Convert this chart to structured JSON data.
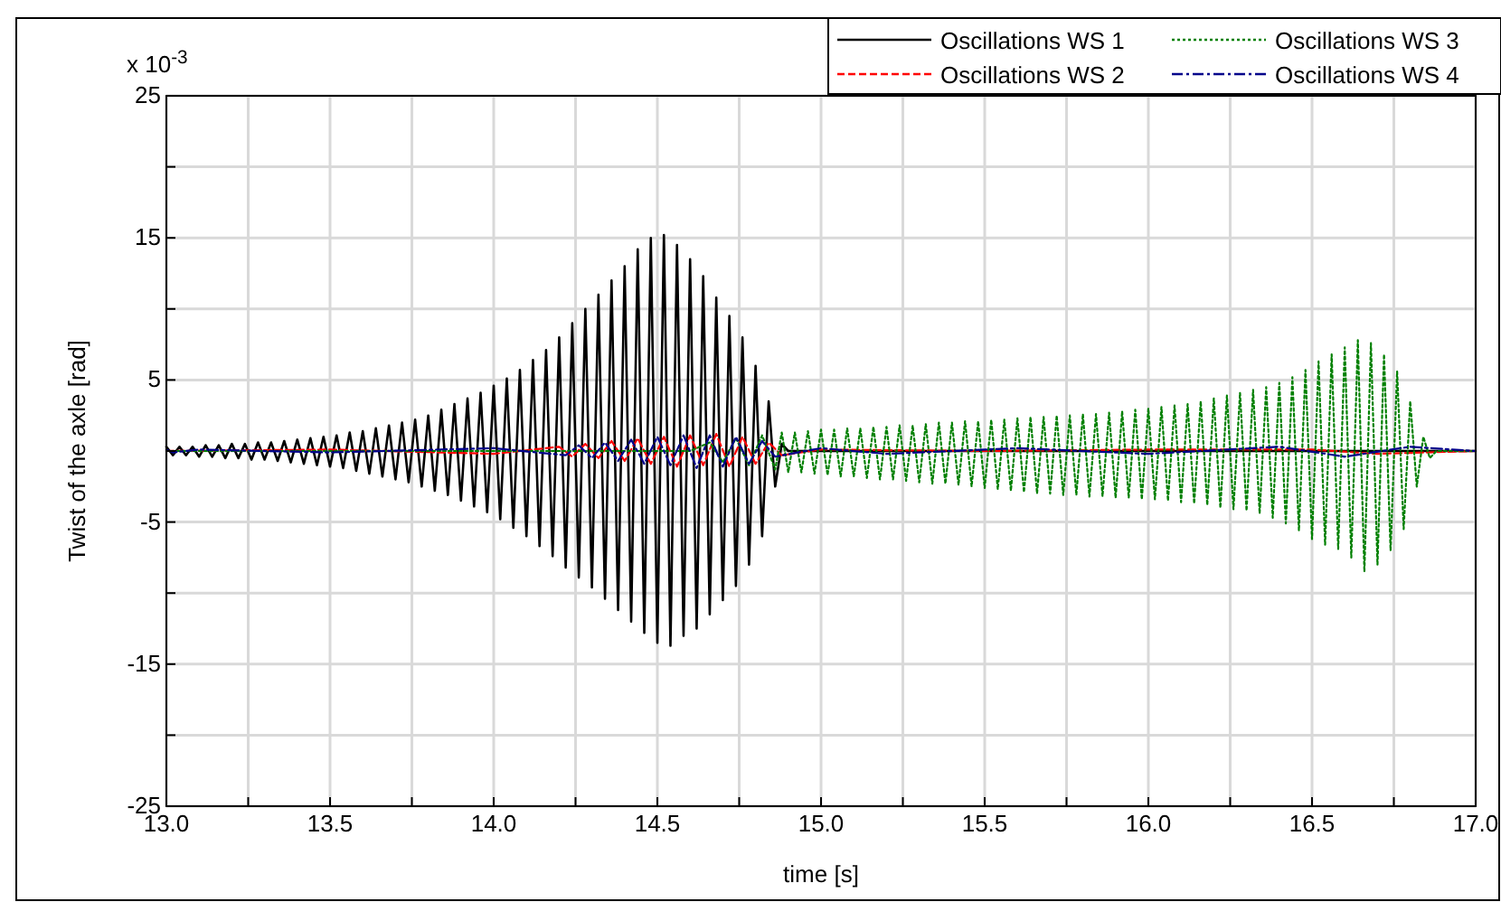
{
  "chart_data": {
    "type": "line",
    "xlabel": "time [s]",
    "ylabel": "Twist of the axle [rad]",
    "annotations": [
      "x 10$^{-3}$"
    ],
    "xlim": [
      13,
      17
    ],
    "ylim": [
      -25,
      25
    ],
    "xticks": [
      {
        "value": 13,
        "label": "13.0"
      },
      {
        "value": 13.25,
        "label": null
      },
      {
        "value": 13.5,
        "label": "13.5"
      },
      {
        "value": 13.75,
        "label": null
      },
      {
        "value": 14,
        "label": "14.0"
      },
      {
        "value": 14.25,
        "label": null
      },
      {
        "value": 14.5,
        "label": "14.5"
      },
      {
        "value": 14.75,
        "label": null
      },
      {
        "value": 15,
        "label": "15.0"
      },
      {
        "value": 15.25,
        "label": null
      },
      {
        "value": 15.5,
        "label": "15.5"
      },
      {
        "value": 15.75,
        "label": null
      },
      {
        "value": 16,
        "label": "16.0"
      },
      {
        "value": 16.25,
        "label": null
      },
      {
        "value": 16.5,
        "label": "16.5"
      },
      {
        "value": 16.75,
        "label": null
      },
      {
        "value": 17,
        "label": "17.0"
      }
    ],
    "yticks": [
      -25,
      {
        "value": -20,
        "label": null
      },
      -15,
      {
        "value": -10,
        "label": null
      },
      -5,
      {
        "value": 0,
        "label": null
      },
      5,
      {
        "value": 10,
        "label": null
      },
      15,
      {
        "value": 20,
        "label": null
      },
      25
    ],
    "grid": true,
    "legend": "top right",
    "series": [
      {
        "name": "Oscillations WS 1",
        "color": "#000000",
        "line_style": "solid",
        "x": [
          13.0,
          13.02,
          13.04,
          13.06,
          13.08,
          13.1,
          13.12,
          13.14,
          13.16,
          13.18,
          13.2,
          13.22,
          13.24,
          13.26,
          13.28,
          13.3,
          13.32,
          13.34,
          13.36,
          13.38,
          13.4,
          13.42,
          13.44,
          13.46,
          13.48,
          13.5,
          13.52,
          13.54,
          13.56,
          13.58,
          13.6,
          13.62,
          13.64,
          13.66,
          13.68,
          13.7,
          13.72,
          13.74,
          13.76,
          13.78,
          13.8,
          13.82,
          13.84,
          13.86,
          13.88,
          13.9,
          13.92,
          13.94,
          13.96,
          13.98,
          14.0,
          14.02,
          14.04,
          14.06,
          14.08,
          14.1,
          14.12,
          14.14,
          14.16,
          14.18,
          14.2,
          14.22,
          14.24,
          14.26,
          14.28,
          14.3,
          14.32,
          14.34,
          14.36,
          14.38,
          14.4,
          14.42,
          14.44,
          14.46,
          14.48,
          14.5,
          14.52,
          14.54,
          14.56,
          14.58,
          14.6,
          14.62,
          14.64,
          14.66,
          14.68,
          14.7,
          14.72,
          14.74,
          14.76,
          14.78,
          14.8,
          14.82,
          14.84,
          14.86,
          14.88,
          14.9,
          15.5,
          16.0,
          16.5,
          17.0
        ],
        "values": [
          0.3,
          -0.3,
          0.3,
          -0.3,
          0.3,
          -0.4,
          0.4,
          -0.4,
          0.4,
          -0.5,
          0.5,
          -0.5,
          0.5,
          -0.6,
          0.6,
          -0.6,
          0.6,
          -0.7,
          0.7,
          -0.8,
          0.8,
          -0.9,
          0.9,
          -1.0,
          1.0,
          -1.1,
          1.1,
          -1.2,
          1.3,
          -1.4,
          1.4,
          -1.6,
          1.6,
          -1.8,
          1.8,
          -2.0,
          2.0,
          -2.2,
          2.2,
          -2.5,
          2.5,
          -2.8,
          2.9,
          -3.1,
          3.3,
          -3.5,
          3.7,
          -3.9,
          4.1,
          -4.3,
          4.6,
          -4.8,
          5.1,
          -5.4,
          5.7,
          -6.0,
          6.4,
          -6.7,
          7.1,
          -7.4,
          8.0,
          -8.2,
          9.0,
          -8.9,
          10.0,
          -9.6,
          11.0,
          -10.4,
          12.0,
          -11.2,
          13.0,
          -12.0,
          14.2,
          -12.8,
          15.0,
          -13.5,
          15.2,
          -13.7,
          14.5,
          -13.0,
          13.5,
          -12.5,
          12.3,
          -11.5,
          10.8,
          -10.5,
          9.5,
          -9.5,
          8.0,
          -8.0,
          6.0,
          -6.0,
          3.5,
          -2.5,
          0.5,
          0,
          0,
          0,
          0,
          0
        ]
      },
      {
        "name": "Oscillations WS 2",
        "color": "#ff0000",
        "line_style": "dashed",
        "x": [
          13.0,
          13.5,
          14.0,
          14.2,
          14.24,
          14.28,
          14.32,
          14.36,
          14.4,
          14.44,
          14.48,
          14.52,
          14.56,
          14.6,
          14.64,
          14.68,
          14.72,
          14.76,
          14.8,
          14.84,
          14.88,
          15.0,
          15.5,
          16.0,
          16.5,
          16.7,
          17.0
        ],
        "values": [
          0,
          0.1,
          -0.2,
          0.3,
          -0.4,
          0.5,
          -0.5,
          0.7,
          -0.7,
          0.9,
          -0.9,
          1.0,
          -1.1,
          1.1,
          -1.0,
          1.2,
          -1.1,
          1.0,
          -0.9,
          0.6,
          -0.3,
          0.1,
          0,
          0.1,
          0.1,
          -0.2,
          0
        ]
      },
      {
        "name": "Oscillations WS 3",
        "color": "#008000",
        "line_style": "dotted",
        "x": [
          13.0,
          14.6,
          14.66,
          14.7,
          14.74,
          14.78,
          14.82,
          14.86,
          14.88,
          14.9,
          14.92,
          14.94,
          14.96,
          14.98,
          15.0,
          15.02,
          15.04,
          15.06,
          15.08,
          15.1,
          15.12,
          15.14,
          15.16,
          15.18,
          15.2,
          15.22,
          15.24,
          15.26,
          15.28,
          15.3,
          15.32,
          15.34,
          15.36,
          15.38,
          15.4,
          15.42,
          15.44,
          15.46,
          15.48,
          15.5,
          15.52,
          15.54,
          15.56,
          15.58,
          15.6,
          15.62,
          15.64,
          15.66,
          15.68,
          15.7,
          15.72,
          15.74,
          15.76,
          15.78,
          15.8,
          15.82,
          15.84,
          15.86,
          15.88,
          15.9,
          15.92,
          15.94,
          15.96,
          15.98,
          16.0,
          16.02,
          16.04,
          16.06,
          16.08,
          16.1,
          16.12,
          16.14,
          16.16,
          16.18,
          16.2,
          16.22,
          16.24,
          16.26,
          16.28,
          16.3,
          16.32,
          16.34,
          16.36,
          16.38,
          16.4,
          16.42,
          16.44,
          16.46,
          16.48,
          16.5,
          16.52,
          16.54,
          16.56,
          16.58,
          16.6,
          16.62,
          16.64,
          16.66,
          16.68,
          16.7,
          16.72,
          16.74,
          16.76,
          16.78,
          16.8,
          16.82,
          16.84,
          16.86,
          16.88,
          17.0
        ],
        "values": [
          0,
          0,
          0.6,
          -0.8,
          0.9,
          -1.0,
          1.1,
          -1.3,
          1.3,
          -1.5,
          1.3,
          -1.5,
          1.4,
          -1.6,
          1.5,
          -1.7,
          1.5,
          -1.8,
          1.6,
          -1.8,
          1.6,
          -1.9,
          1.7,
          -2.0,
          1.7,
          -2.0,
          1.8,
          -2.1,
          1.8,
          -2.2,
          1.9,
          -2.3,
          2.0,
          -2.3,
          2.0,
          -2.4,
          2.1,
          -2.5,
          2.1,
          -2.6,
          2.2,
          -2.7,
          2.2,
          -2.8,
          2.3,
          -2.9,
          2.4,
          -3.0,
          2.4,
          -3.0,
          2.5,
          -3.1,
          2.5,
          -3.1,
          2.6,
          -3.2,
          2.6,
          -3.2,
          2.7,
          -3.3,
          2.8,
          -3.3,
          2.9,
          -3.4,
          3.0,
          -3.4,
          3.1,
          -3.5,
          3.2,
          -3.6,
          3.3,
          -3.7,
          3.5,
          -3.8,
          3.7,
          -4.0,
          3.9,
          -4.1,
          4.1,
          -4.2,
          4.3,
          -4.4,
          4.5,
          -4.7,
          4.8,
          -5.1,
          5.2,
          -5.6,
          5.7,
          -6.2,
          6.3,
          -6.6,
          6.8,
          -6.9,
          7.3,
          -7.5,
          7.8,
          -8.5,
          7.6,
          -8.0,
          6.8,
          -7.0,
          5.6,
          -5.5,
          3.5,
          -2.5,
          1.0,
          -0.5,
          0,
          0
        ]
      },
      {
        "name": "Oscillations WS 4",
        "color": "#00008b",
        "line_style": "dashdot",
        "x": [
          13.0,
          13.02,
          13.1,
          13.5,
          14.0,
          14.22,
          14.26,
          14.3,
          14.34,
          14.38,
          14.42,
          14.46,
          14.5,
          14.54,
          14.58,
          14.62,
          14.66,
          14.7,
          14.74,
          14.78,
          14.82,
          14.86,
          15.0,
          15.2,
          15.6,
          16.0,
          16.4,
          16.6,
          16.8,
          17.0
        ],
        "values": [
          0.1,
          -0.1,
          0.1,
          -0.1,
          0.2,
          -0.3,
          0.4,
          -0.5,
          0.6,
          -0.7,
          0.8,
          -0.9,
          1.0,
          -1.0,
          1.1,
          -1.2,
          1.1,
          -1.1,
          1.0,
          -0.9,
          0.7,
          -0.4,
          0.2,
          -0.2,
          0.2,
          -0.2,
          0.3,
          -0.4,
          0.3,
          0
        ]
      }
    ]
  }
}
